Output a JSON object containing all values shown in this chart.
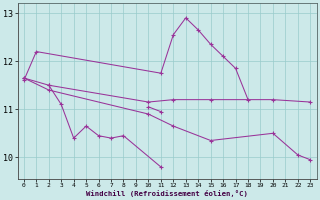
{
  "bg_color": "#cce9e9",
  "line_color": "#993399",
  "grid_color": "#99cccc",
  "xlabel": "Windchill (Refroidissement éolien,°C)",
  "ylim": [
    9.55,
    13.2
  ],
  "xlim": [
    -0.5,
    23.5
  ],
  "yticks": [
    10,
    11,
    12,
    13
  ],
  "xticks": [
    0,
    1,
    2,
    3,
    4,
    5,
    6,
    7,
    8,
    9,
    10,
    11,
    12,
    13,
    14,
    15,
    16,
    17,
    18,
    19,
    20,
    21,
    22,
    23
  ],
  "line1_x": [
    0,
    1,
    11,
    12,
    13,
    14,
    15,
    16,
    17,
    18
  ],
  "line1_y": [
    11.6,
    12.2,
    11.75,
    12.55,
    12.9,
    12.65,
    12.35,
    12.1,
    11.85,
    11.2
  ],
  "line2_x": [
    2,
    3,
    4,
    5,
    6,
    7,
    8,
    11
  ],
  "line2_y": [
    11.5,
    11.1,
    10.4,
    10.65,
    10.45,
    10.4,
    10.45,
    9.8
  ],
  "line3_x": [
    10,
    11
  ],
  "line3_y": [
    11.05,
    10.95
  ],
  "line4_x": [
    0,
    2,
    10,
    12,
    15,
    20,
    23
  ],
  "line4_y": [
    11.65,
    11.5,
    11.15,
    11.2,
    11.2,
    11.2,
    11.15
  ],
  "line5_x": [
    0,
    2,
    10,
    12,
    15,
    20,
    22,
    23
  ],
  "line5_y": [
    11.65,
    11.4,
    10.9,
    10.65,
    10.35,
    10.5,
    10.05,
    9.95
  ],
  "lw": 0.75,
  "ms": 3.5,
  "mew": 0.8
}
